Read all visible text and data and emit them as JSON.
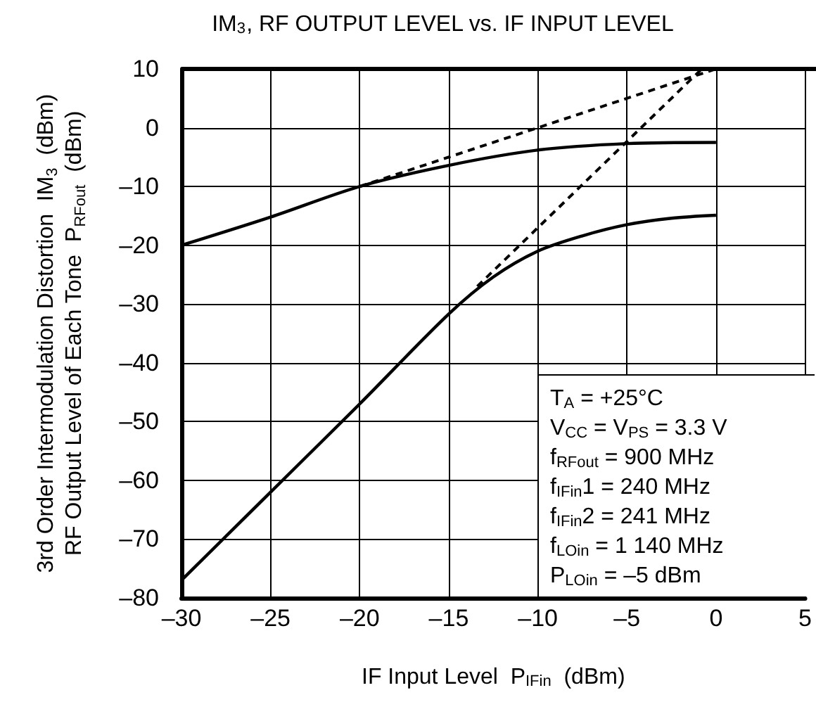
{
  "chart_data": {
    "type": "line",
    "title": "IM$_{3}$, RF OUTPUT LEVEL vs. IF INPUT LEVEL",
    "xlabel": "IF Input Level  P$_{IFin}$  (dBm)",
    "ylabel": "3rd Order Intermodulation Distortion  IM$_{3}$  (dBm)\nRF Output Level of Each Tone  P$_{RFout}$  (dBm)",
    "annotations": [
      "T$_{A}$ = +25°C",
      "V$_{CC}$ = V$_{PS}$ = 3.3 V",
      "f$_{RFout}$ = 900 MHz",
      "f$_{IFin}$1 = 240 MHz",
      "f$_{IFin}$2 = 241 MHz",
      "f$_{LOin}$ = 1 140 MHz",
      "P$_{LOin}$ = –5 dBm"
    ],
    "series": [
      {
        "color": "#000000",
        "x": [
          -30,
          -25,
          -20,
          -15,
          -10,
          -5,
          0
        ],
        "values": [
          -20,
          -15.2,
          -10,
          -6.4,
          -3.8,
          -2.7,
          -2.5
        ]
      },
      {
        "color": "#000000",
        "x": [
          -30,
          -25,
          -20,
          -15,
          -12.5,
          -10,
          -7.5,
          -5,
          -2.5,
          0
        ],
        "values": [
          -77,
          -62,
          -47,
          -31.7,
          -25.4,
          -21,
          -18.4,
          -16.5,
          -15.4,
          -14.9
        ]
      },
      {
        "color": "#000000",
        "line_style": "dashed",
        "x": [
          -20,
          0
        ],
        "values": [
          -10,
          10
        ]
      },
      {
        "color": "#000000",
        "line_style": "dashed",
        "x": [
          -13.4,
          -0.8
        ],
        "values": [
          -27,
          10
        ]
      }
    ],
    "marker": "none",
    "grid": true,
    "xlim": [
      -30,
      5
    ],
    "xticks": [
      {
        "value": -30,
        "label": "–30"
      },
      {
        "value": -25,
        "label": "–25"
      },
      {
        "value": -20,
        "label": "–20"
      },
      {
        "value": -15,
        "label": "–15"
      },
      {
        "value": -10,
        "label": "–10"
      },
      {
        "value": -5,
        "label": "–5"
      },
      0,
      5
    ],
    "ylim": [
      -80,
      10
    ],
    "yticks": [
      {
        "value": -80,
        "label": "–80"
      },
      {
        "value": -70,
        "label": "–70"
      },
      {
        "value": -60,
        "label": "–60"
      },
      {
        "value": -50,
        "label": "–50"
      },
      {
        "value": -40,
        "label": "–40"
      },
      {
        "value": -30,
        "label": "–30"
      },
      {
        "value": -20,
        "label": "–20"
      },
      {
        "value": -10,
        "label": "–10"
      },
      0,
      10
    ]
  }
}
